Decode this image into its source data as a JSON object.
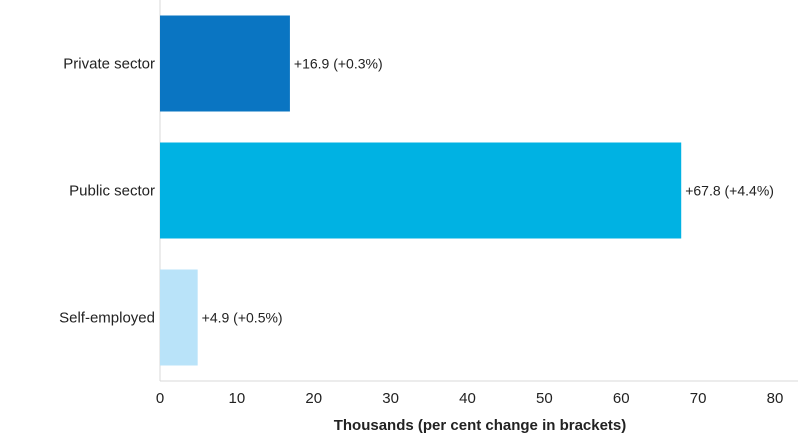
{
  "chart_data": {
    "type": "bar",
    "orientation": "horizontal",
    "categories": [
      "Private sector",
      "Public sector",
      "Self-employed"
    ],
    "values": [
      16.9,
      67.8,
      4.9
    ],
    "data_labels": [
      "+16.9 (+0.3%)",
      "+67.8 (+4.4%)",
      "+4.9 (+0.5%)"
    ],
    "colors": [
      "#0a75c2",
      "#00b2e3",
      "#b9e3f9"
    ],
    "xlabel": "Thousands (per cent change in brackets)",
    "xlim": [
      0,
      80
    ],
    "xticks": [
      0,
      10,
      20,
      30,
      40,
      50,
      60,
      70,
      80
    ],
    "grid": false,
    "legend": "none"
  }
}
